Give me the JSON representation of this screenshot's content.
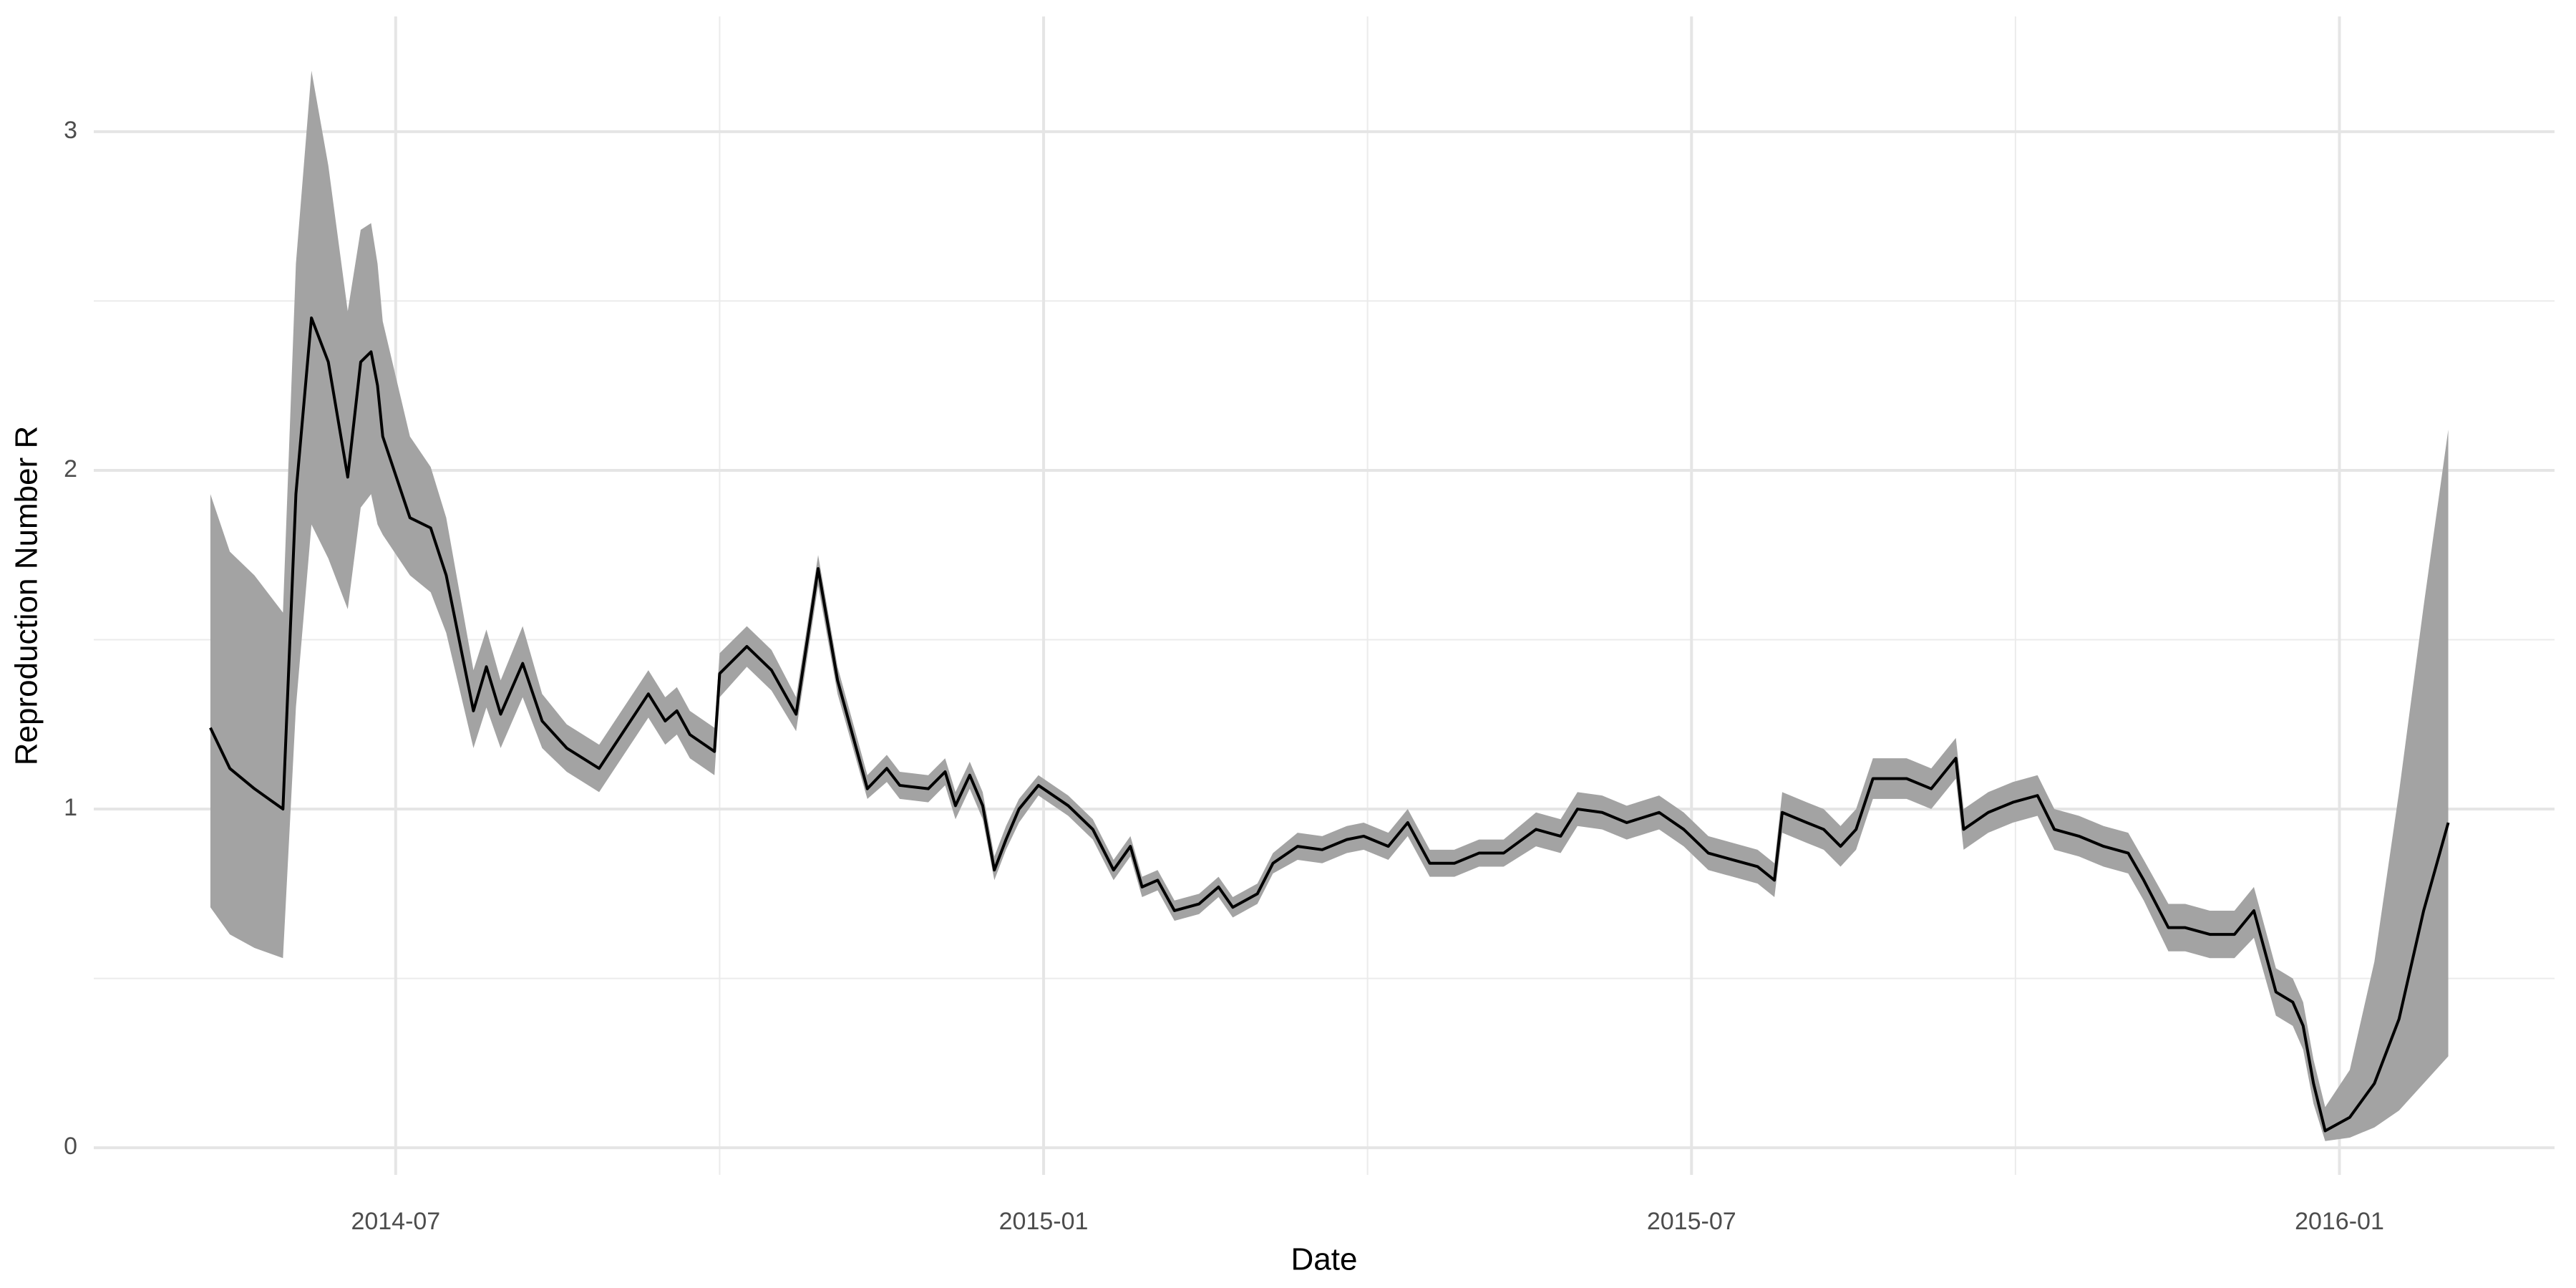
{
  "chart_data": {
    "type": "ribbon-line",
    "x_label": "Date",
    "y_label": "Reproduction Number R",
    "xlim": [
      2014.267,
      2016.166
    ],
    "ylim": [
      -0.08,
      3.34
    ],
    "xticks": [
      {
        "value": 2014.5,
        "label": "2014-07"
      },
      {
        "value": 2015,
        "label": "2015-01"
      },
      {
        "value": 2015.5,
        "label": "2015-07"
      },
      {
        "value": 2016,
        "label": "2016-01"
      }
    ],
    "x_minor_ticks": [
      2014.75,
      2015.25,
      2015.75
    ],
    "yticks": [
      0,
      1,
      2,
      3
    ],
    "y_minor_ticks": [
      0.5,
      1.5,
      2.5
    ],
    "grid": true,
    "line_color": "#000000",
    "band_color": "#a3a3a3",
    "x": [
      2014.357,
      2014.372,
      2014.391,
      2014.413,
      2014.423,
      2014.435,
      2014.448,
      2014.463,
      2014.473,
      2014.481,
      2014.486,
      2014.49,
      2014.511,
      2014.527,
      2014.539,
      2014.56,
      2014.57,
      2014.581,
      2014.598,
      2014.613,
      2014.632,
      2014.657,
      2014.676,
      2014.695,
      2014.708,
      2014.717,
      2014.727,
      2014.746,
      2014.75,
      2014.771,
      2014.79,
      2014.809,
      2014.826,
      2014.841,
      2014.864,
      2014.879,
      2014.889,
      2014.911,
      2014.924,
      2014.932,
      2014.943,
      2014.953,
      2014.962,
      2014.971,
      2014.981,
      2014.996,
      2015.019,
      2015.038,
      2015.054,
      2015.067,
      2015.076,
      2015.088,
      2015.101,
      2015.12,
      2015.135,
      2015.146,
      2015.165,
      2015.177,
      2015.196,
      2015.215,
      2015.234,
      2015.247,
      2015.266,
      2015.281,
      2015.298,
      2015.317,
      2015.336,
      2015.355,
      2015.38,
      2015.399,
      2015.412,
      2015.431,
      2015.45,
      2015.475,
      2015.494,
      2015.513,
      2015.532,
      2015.551,
      2015.564,
      2015.57,
      2015.589,
      2015.602,
      2015.615,
      2015.627,
      2015.64,
      2015.666,
      2015.685,
      2015.704,
      2015.71,
      2015.729,
      2015.748,
      2015.767,
      2015.78,
      2015.799,
      2015.818,
      2015.837,
      2015.849,
      2015.868,
      2015.881,
      2015.9,
      2015.919,
      2015.934,
      2015.951,
      2015.964,
      2015.972,
      2015.98,
      2015.989,
      2016.008,
      2016.027,
      2016.046,
      2016.065,
      2016.084
    ],
    "values": [
      1.24,
      1.12,
      1.06,
      1.0,
      1.93,
      2.45,
      2.32,
      1.98,
      2.32,
      2.35,
      2.25,
      2.1,
      1.86,
      1.83,
      1.69,
      1.29,
      1.42,
      1.28,
      1.43,
      1.26,
      1.18,
      1.12,
      1.23,
      1.34,
      1.26,
      1.29,
      1.22,
      1.17,
      1.4,
      1.48,
      1.41,
      1.28,
      1.71,
      1.38,
      1.06,
      1.12,
      1.07,
      1.06,
      1.11,
      1.01,
      1.1,
      1.01,
      0.82,
      0.91,
      1.0,
      1.07,
      1.01,
      0.94,
      0.82,
      0.89,
      0.77,
      0.79,
      0.7,
      0.72,
      0.77,
      0.71,
      0.75,
      0.84,
      0.89,
      0.88,
      0.91,
      0.92,
      0.89,
      0.96,
      0.84,
      0.84,
      0.87,
      0.87,
      0.94,
      0.92,
      1.0,
      0.99,
      0.96,
      0.99,
      0.94,
      0.87,
      0.85,
      0.83,
      0.79,
      0.99,
      0.96,
      0.94,
      0.89,
      0.94,
      1.09,
      1.09,
      1.06,
      1.15,
      0.94,
      0.99,
      1.02,
      1.04,
      0.94,
      0.92,
      0.89,
      0.87,
      0.79,
      0.65,
      0.65,
      0.63,
      0.63,
      0.7,
      0.46,
      0.43,
      0.36,
      0.19,
      0.05,
      0.09,
      0.19,
      0.38,
      0.7,
      0.96
    ],
    "lower": [
      0.71,
      0.63,
      0.59,
      0.56,
      1.3,
      1.84,
      1.74,
      1.59,
      1.89,
      1.93,
      1.84,
      1.81,
      1.69,
      1.64,
      1.52,
      1.18,
      1.3,
      1.18,
      1.33,
      1.18,
      1.11,
      1.05,
      1.16,
      1.27,
      1.19,
      1.22,
      1.15,
      1.1,
      1.33,
      1.42,
      1.35,
      1.23,
      1.66,
      1.34,
      1.03,
      1.08,
      1.03,
      1.02,
      1.07,
      0.97,
      1.06,
      0.97,
      0.79,
      0.88,
      0.96,
      1.04,
      0.98,
      0.91,
      0.79,
      0.86,
      0.74,
      0.76,
      0.67,
      0.69,
      0.74,
      0.68,
      0.72,
      0.81,
      0.85,
      0.84,
      0.87,
      0.88,
      0.85,
      0.92,
      0.8,
      0.8,
      0.83,
      0.83,
      0.89,
      0.87,
      0.95,
      0.94,
      0.91,
      0.94,
      0.89,
      0.82,
      0.8,
      0.78,
      0.74,
      0.93,
      0.9,
      0.88,
      0.83,
      0.88,
      1.03,
      1.03,
      1.0,
      1.09,
      0.88,
      0.93,
      0.96,
      0.98,
      0.88,
      0.86,
      0.83,
      0.81,
      0.73,
      0.58,
      0.58,
      0.56,
      0.56,
      0.62,
      0.39,
      0.36,
      0.29,
      0.13,
      0.02,
      0.03,
      0.06,
      0.11,
      0.19,
      0.27
    ],
    "upper": [
      1.93,
      1.76,
      1.69,
      1.58,
      2.61,
      3.18,
      2.9,
      2.47,
      2.71,
      2.73,
      2.61,
      2.44,
      2.1,
      2.01,
      1.86,
      1.41,
      1.53,
      1.38,
      1.54,
      1.34,
      1.25,
      1.19,
      1.3,
      1.41,
      1.33,
      1.36,
      1.29,
      1.24,
      1.46,
      1.54,
      1.47,
      1.33,
      1.75,
      1.42,
      1.1,
      1.16,
      1.11,
      1.1,
      1.15,
      1.05,
      1.14,
      1.05,
      0.86,
      0.95,
      1.03,
      1.1,
      1.04,
      0.97,
      0.85,
      0.92,
      0.8,
      0.82,
      0.73,
      0.75,
      0.8,
      0.74,
      0.78,
      0.87,
      0.93,
      0.92,
      0.95,
      0.96,
      0.93,
      1.0,
      0.88,
      0.88,
      0.91,
      0.91,
      0.99,
      0.97,
      1.05,
      1.04,
      1.01,
      1.04,
      0.99,
      0.92,
      0.9,
      0.88,
      0.84,
      1.05,
      1.02,
      1.0,
      0.95,
      1.0,
      1.15,
      1.15,
      1.12,
      1.21,
      1.0,
      1.05,
      1.08,
      1.1,
      1.0,
      0.98,
      0.95,
      0.93,
      0.85,
      0.72,
      0.72,
      0.7,
      0.7,
      0.77,
      0.53,
      0.5,
      0.43,
      0.26,
      0.12,
      0.23,
      0.55,
      1.05,
      1.6,
      2.12
    ]
  }
}
